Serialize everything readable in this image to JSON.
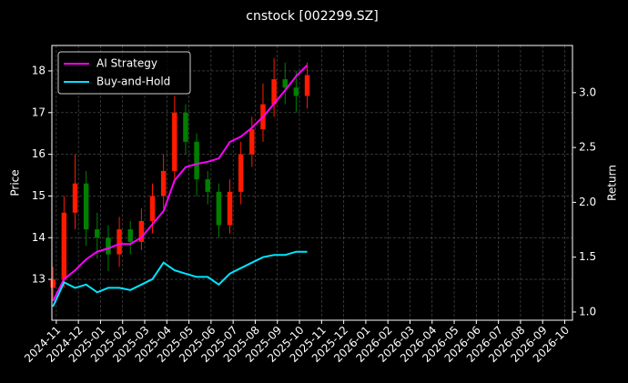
{
  "chart_data": {
    "type": "candlestick",
    "title": "cnstock [002299.SZ]",
    "ylabel": "Price",
    "y2label": "Return",
    "grid": true,
    "legend": "upper left",
    "up_color": "#ff1a00",
    "down_color": "#008000",
    "x": [
      -0.15,
      0.35,
      0.85,
      1.35,
      1.85,
      2.35,
      2.85,
      3.35,
      3.85,
      4.35,
      4.85,
      5.35,
      5.85,
      6.35,
      6.85,
      7.35,
      7.85,
      8.35,
      8.85,
      9.35,
      9.85,
      10.35,
      10.85,
      11.35
    ],
    "open": [
      12.8,
      13.0,
      14.6,
      15.3,
      14.2,
      14.0,
      13.6,
      14.2,
      13.9,
      14.4,
      15.0,
      15.6,
      17.0,
      16.3,
      15.4,
      15.1,
      14.3,
      15.1,
      16.0,
      16.6,
      17.2,
      17.8,
      17.6,
      17.4
    ],
    "high": [
      13.3,
      15.0,
      16.0,
      15.6,
      14.6,
      14.3,
      14.5,
      14.4,
      14.7,
      15.3,
      16.0,
      17.4,
      17.2,
      16.5,
      15.6,
      15.3,
      15.4,
      16.3,
      16.9,
      17.7,
      18.3,
      18.2,
      18.0,
      18.2
    ],
    "low": [
      12.5,
      12.8,
      14.2,
      13.8,
      13.5,
      13.2,
      13.3,
      13.6,
      13.7,
      14.1,
      14.7,
      15.3,
      16.0,
      15.0,
      14.8,
      14.0,
      14.1,
      14.8,
      15.7,
      16.3,
      16.9,
      17.2,
      17.0,
      17.1
    ],
    "close": [
      13.0,
      14.6,
      15.3,
      14.2,
      14.0,
      13.6,
      14.2,
      13.9,
      14.4,
      15.0,
      15.6,
      17.0,
      16.3,
      15.4,
      15.1,
      14.3,
      15.1,
      16.0,
      16.6,
      17.2,
      17.8,
      17.6,
      17.4,
      17.9
    ],
    "series": [
      {
        "name": "AI Strategy",
        "color": "#ff00ff",
        "axis": "y2",
        "values": [
          1.1,
          1.3,
          1.38,
          1.48,
          1.55,
          1.58,
          1.62,
          1.62,
          1.68,
          1.8,
          1.92,
          2.2,
          2.32,
          2.35,
          2.37,
          2.4,
          2.55,
          2.6,
          2.68,
          2.78,
          2.9,
          3.02,
          3.15,
          3.25
        ]
      },
      {
        "name": "Buy-and-Hold",
        "color": "#00e5ff",
        "axis": "y2",
        "values": [
          1.05,
          1.27,
          1.22,
          1.25,
          1.18,
          1.22,
          1.22,
          1.2,
          1.25,
          1.3,
          1.45,
          1.38,
          1.35,
          1.32,
          1.32,
          1.25,
          1.35,
          1.4,
          1.45,
          1.5,
          1.52,
          1.52,
          1.55,
          1.55
        ]
      }
    ],
    "xlim": [
      -0.2,
      23.35
    ],
    "xticks": [
      {
        "value": 0,
        "label": "2024-11"
      },
      {
        "value": 1,
        "label": "2024-12"
      },
      {
        "value": 2,
        "label": "2025-01"
      },
      {
        "value": 3,
        "label": "2025-02"
      },
      {
        "value": 4,
        "label": "2025-03"
      },
      {
        "value": 5,
        "label": "2025-04"
      },
      {
        "value": 6,
        "label": "2025-05"
      },
      {
        "value": 7,
        "label": "2025-06"
      },
      {
        "value": 8,
        "label": "2025-07"
      },
      {
        "value": 9,
        "label": "2025-08"
      },
      {
        "value": 10,
        "label": "2025-09"
      },
      {
        "value": 11,
        "label": "2025-10"
      },
      {
        "value": 12,
        "label": "2025-11"
      },
      {
        "value": 13,
        "label": "2025-12"
      },
      {
        "value": 14,
        "label": "2026-01"
      },
      {
        "value": 15,
        "label": "2026-02"
      },
      {
        "value": 16,
        "label": "2026-03"
      },
      {
        "value": 17,
        "label": "2026-04"
      },
      {
        "value": 18,
        "label": "2026-05"
      },
      {
        "value": 19,
        "label": "2026-06"
      },
      {
        "value": 20,
        "label": "2026-07"
      },
      {
        "value": 21,
        "label": "2026-08"
      },
      {
        "value": 22,
        "label": "2026-09"
      },
      {
        "value": 23,
        "label": "2026-10"
      }
    ],
    "ylim": [
      12.02,
      18.61
    ],
    "yticks": [
      13,
      14,
      15,
      16,
      17,
      18
    ],
    "y2lim": [
      0.925,
      3.43
    ],
    "y2ticks": [
      {
        "value": 1,
        "label": "1.0"
      },
      1.5,
      {
        "value": 2,
        "label": "2.0"
      },
      2.5,
      {
        "value": 3,
        "label": "3.0"
      }
    ]
  }
}
